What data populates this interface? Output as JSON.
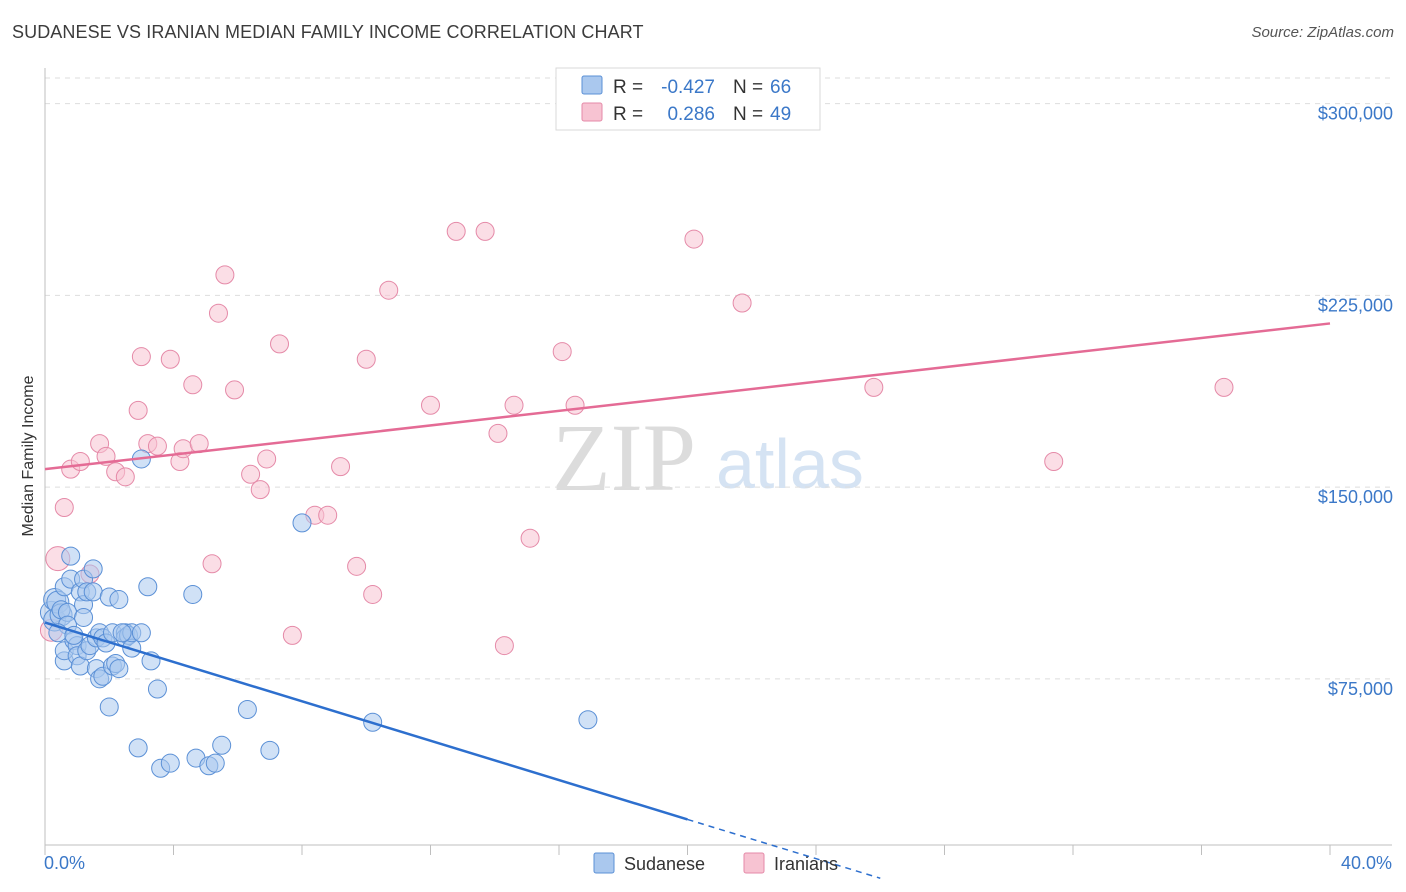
{
  "header": {
    "title": "SUDANESE VS IRANIAN MEDIAN FAMILY INCOME CORRELATION CHART",
    "source": "Source: ZipAtlas.com"
  },
  "watermark": {
    "part1": "ZIP",
    "part2": "atlas"
  },
  "legend": {
    "rows": [
      {
        "r_label": "R =",
        "r_value": "-0.427",
        "n_label": "N =",
        "n_value": "66",
        "color": "#aac8ee"
      },
      {
        "r_label": "R =",
        "r_value": "0.286",
        "n_label": "N =",
        "n_value": "49",
        "color": "#f7bfd0"
      }
    ]
  },
  "bottom_legend": {
    "items": [
      "Sudanese",
      "Iranians"
    ]
  },
  "colors": {
    "blue_fill": "#aac8ee",
    "blue_stroke": "#5b90d6",
    "blue_line": "#2d6fce",
    "pink_fill": "#f7c3d2",
    "pink_stroke": "#e58aa8",
    "pink_line": "#e46b95",
    "grid": "#dddddd",
    "axis_label": "#3b78c8"
  },
  "chart_data": {
    "type": "scatter",
    "title": "SUDANESE VS IRANIAN MEDIAN FAMILY INCOME CORRELATION CHART",
    "xlabel": "",
    "ylabel": "Median Family Income",
    "xlim": [
      0,
      40
    ],
    "ylim": [
      10000,
      310000
    ],
    "x_tick_labels": [
      "0.0%",
      "40.0%"
    ],
    "y_ticks": [
      75000,
      150000,
      225000,
      300000
    ],
    "y_tick_labels": [
      "$75,000",
      "$150,000",
      "$225,000",
      "$300,000"
    ],
    "grid": true,
    "legend_position": "top-center",
    "series": [
      {
        "name": "Sudanese",
        "R": -0.427,
        "N": 66,
        "trend": {
          "x0": 0,
          "y0": 97000,
          "x1": 20,
          "y1": 20000,
          "dash_to_x": 26,
          "dash_to_y": -3000
        },
        "points": [
          [
            0.2,
            101000
          ],
          [
            0.3,
            106000
          ],
          [
            0.3,
            98000
          ],
          [
            0.4,
            105000
          ],
          [
            0.5,
            100000
          ],
          [
            0.5,
            102000
          ],
          [
            0.6,
            111000
          ],
          [
            0.6,
            82000
          ],
          [
            0.6,
            86000
          ],
          [
            0.7,
            101000
          ],
          [
            0.7,
            96000
          ],
          [
            0.8,
            123000
          ],
          [
            0.8,
            114000
          ],
          [
            0.9,
            90000
          ],
          [
            1.0,
            88000
          ],
          [
            1.0,
            84000
          ],
          [
            1.1,
            80000
          ],
          [
            1.1,
            109000
          ],
          [
            1.2,
            114000
          ],
          [
            1.2,
            104000
          ],
          [
            1.2,
            99000
          ],
          [
            1.3,
            109000
          ],
          [
            1.3,
            86000
          ],
          [
            1.4,
            88000
          ],
          [
            1.5,
            118000
          ],
          [
            1.5,
            109000
          ],
          [
            1.6,
            79000
          ],
          [
            1.6,
            91000
          ],
          [
            1.7,
            75000
          ],
          [
            1.7,
            93000
          ],
          [
            1.8,
            76000
          ],
          [
            1.8,
            91000
          ],
          [
            1.9,
            89000
          ],
          [
            2.0,
            107000
          ],
          [
            2.0,
            64000
          ],
          [
            2.1,
            80000
          ],
          [
            2.1,
            93000
          ],
          [
            2.2,
            81000
          ],
          [
            2.3,
            79000
          ],
          [
            2.3,
            106000
          ],
          [
            2.5,
            93000
          ],
          [
            2.5,
            91000
          ],
          [
            2.6,
            92000
          ],
          [
            2.7,
            87000
          ],
          [
            2.7,
            93000
          ],
          [
            2.9,
            48000
          ],
          [
            3.0,
            93000
          ],
          [
            3.0,
            161000
          ],
          [
            3.2,
            111000
          ],
          [
            3.3,
            82000
          ],
          [
            3.5,
            71000
          ],
          [
            3.6,
            40000
          ],
          [
            3.9,
            42000
          ],
          [
            4.6,
            108000
          ],
          [
            4.7,
            44000
          ],
          [
            5.1,
            41000
          ],
          [
            5.3,
            42000
          ],
          [
            5.5,
            49000
          ],
          [
            6.3,
            63000
          ],
          [
            7.0,
            47000
          ],
          [
            8.0,
            136000
          ],
          [
            10.2,
            58000
          ],
          [
            16.9,
            59000
          ],
          [
            0.4,
            93000
          ],
          [
            0.9,
            92000
          ],
          [
            2.4,
            93000
          ]
        ]
      },
      {
        "name": "Iranians",
        "R": 0.286,
        "N": 49,
        "trend": {
          "x0": 0,
          "y0": 157000,
          "x1": 40,
          "y1": 214000
        },
        "points": [
          [
            0.2,
            94000
          ],
          [
            0.4,
            122000
          ],
          [
            0.6,
            142000
          ],
          [
            0.8,
            157000
          ],
          [
            1.1,
            160000
          ],
          [
            1.4,
            116000
          ],
          [
            1.7,
            167000
          ],
          [
            1.9,
            162000
          ],
          [
            2.2,
            156000
          ],
          [
            2.5,
            154000
          ],
          [
            2.9,
            180000
          ],
          [
            3.0,
            201000
          ],
          [
            3.2,
            167000
          ],
          [
            3.5,
            166000
          ],
          [
            3.9,
            200000
          ],
          [
            4.2,
            160000
          ],
          [
            4.3,
            165000
          ],
          [
            4.6,
            190000
          ],
          [
            4.8,
            167000
          ],
          [
            5.2,
            120000
          ],
          [
            5.4,
            218000
          ],
          [
            5.6,
            233000
          ],
          [
            5.9,
            188000
          ],
          [
            6.4,
            155000
          ],
          [
            6.7,
            149000
          ],
          [
            6.9,
            161000
          ],
          [
            7.3,
            206000
          ],
          [
            7.7,
            92000
          ],
          [
            8.4,
            139000
          ],
          [
            8.8,
            139000
          ],
          [
            9.2,
            158000
          ],
          [
            9.7,
            119000
          ],
          [
            10.0,
            200000
          ],
          [
            10.2,
            108000
          ],
          [
            10.7,
            227000
          ],
          [
            12.0,
            182000
          ],
          [
            12.8,
            250000
          ],
          [
            13.7,
            250000
          ],
          [
            14.1,
            171000
          ],
          [
            14.3,
            88000
          ],
          [
            14.6,
            182000
          ],
          [
            15.1,
            130000
          ],
          [
            16.1,
            203000
          ],
          [
            16.5,
            182000
          ],
          [
            20.2,
            247000
          ],
          [
            21.7,
            222000
          ],
          [
            25.8,
            189000
          ],
          [
            31.4,
            160000
          ],
          [
            36.7,
            189000
          ]
        ]
      }
    ]
  }
}
